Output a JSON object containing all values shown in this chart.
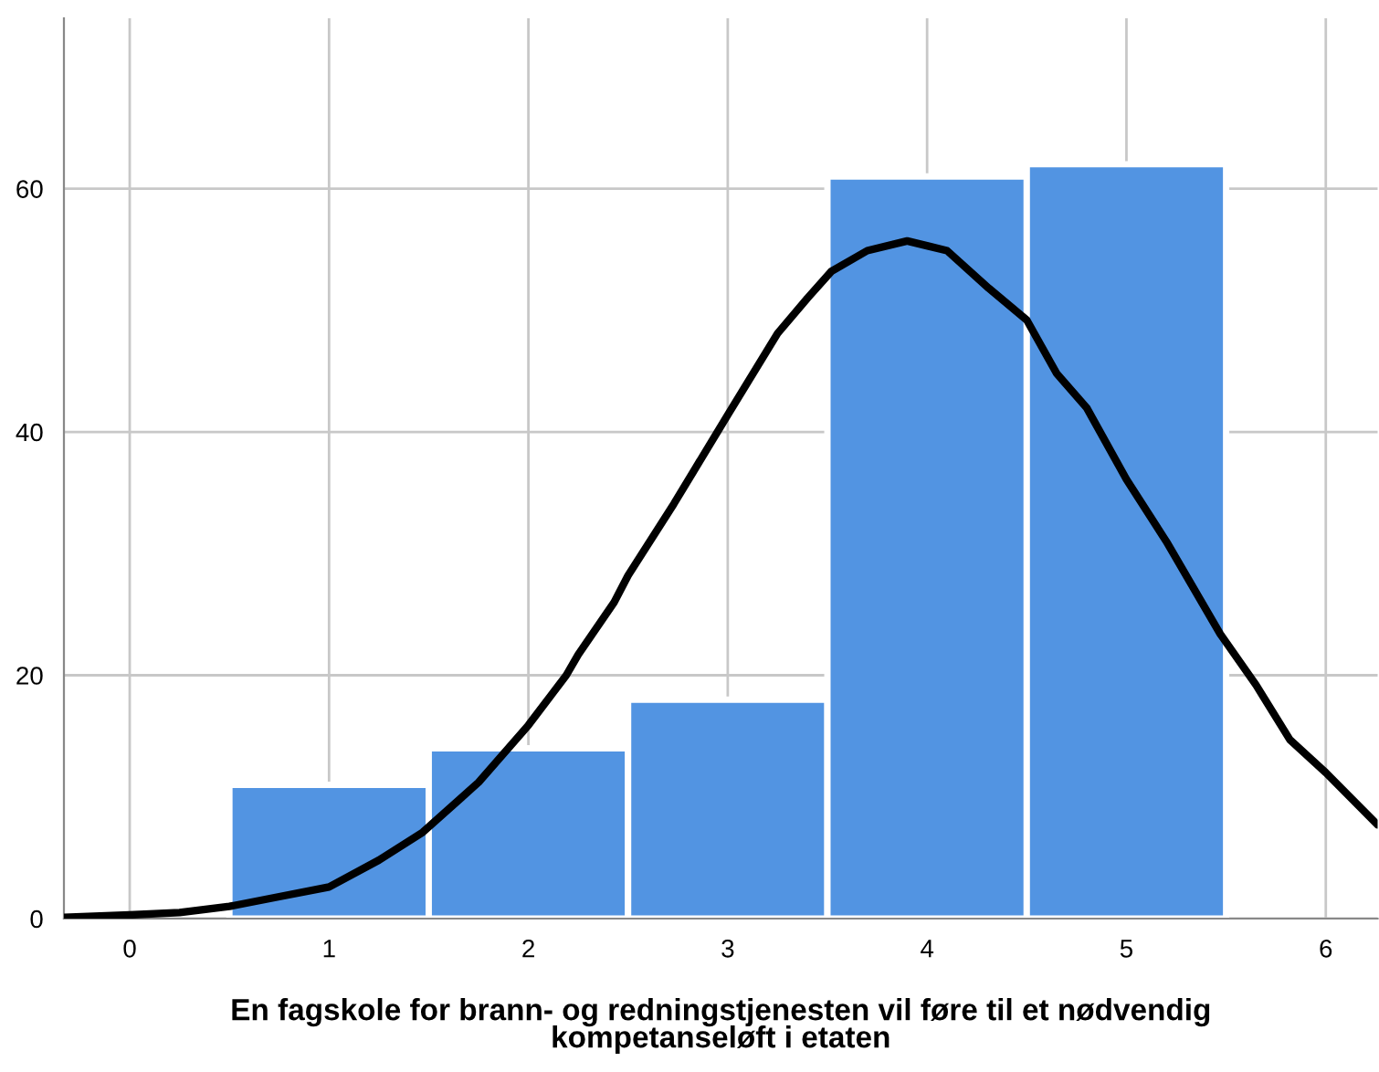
{
  "chart_data": {
    "type": "histogram",
    "xlabel": "En fagskole for brann- og redningstjenesten vil føre til et nødvendig\nkompetanseløft i etaten",
    "bins": [
      0.5,
      1.5,
      2.5,
      3.5,
      4.5,
      5.5
    ],
    "values": [
      11,
      14,
      18,
      61,
      62
    ],
    "color": "#5294e2",
    "series": [
      {
        "type": "line",
        "color": "#000000",
        "x": [
          -0.33,
          0.0,
          0.25,
          0.5,
          0.75,
          1.0,
          1.25,
          1.47,
          1.75,
          2.0,
          2.19,
          2.25,
          2.43,
          2.5,
          2.73,
          3.0,
          3.25,
          3.4,
          3.52,
          3.7,
          3.9,
          4.1,
          4.31,
          4.5,
          4.65,
          4.8,
          5.0,
          5.2,
          5.47,
          5.65,
          5.82,
          6.0,
          6.26
        ],
        "values": [
          0.1,
          0.3,
          0.5,
          1.0,
          1.8,
          2.6,
          4.8,
          7.1,
          11.2,
          15.9,
          20,
          21.7,
          26,
          28.2,
          34.1,
          41.4,
          48.1,
          51,
          53.2,
          54.9,
          55.7,
          54.9,
          51.8,
          49.2,
          44.8,
          42,
          36.1,
          31,
          23.4,
          19.2,
          14.7,
          12,
          7.7
        ]
      }
    ],
    "xlim": [
      -0.33,
      6.26
    ],
    "ylim": [
      0,
      74
    ],
    "xticks": [
      0,
      1,
      2,
      3,
      4,
      5,
      6
    ],
    "yticks": [
      0,
      20,
      40,
      60
    ],
    "grid": true
  }
}
